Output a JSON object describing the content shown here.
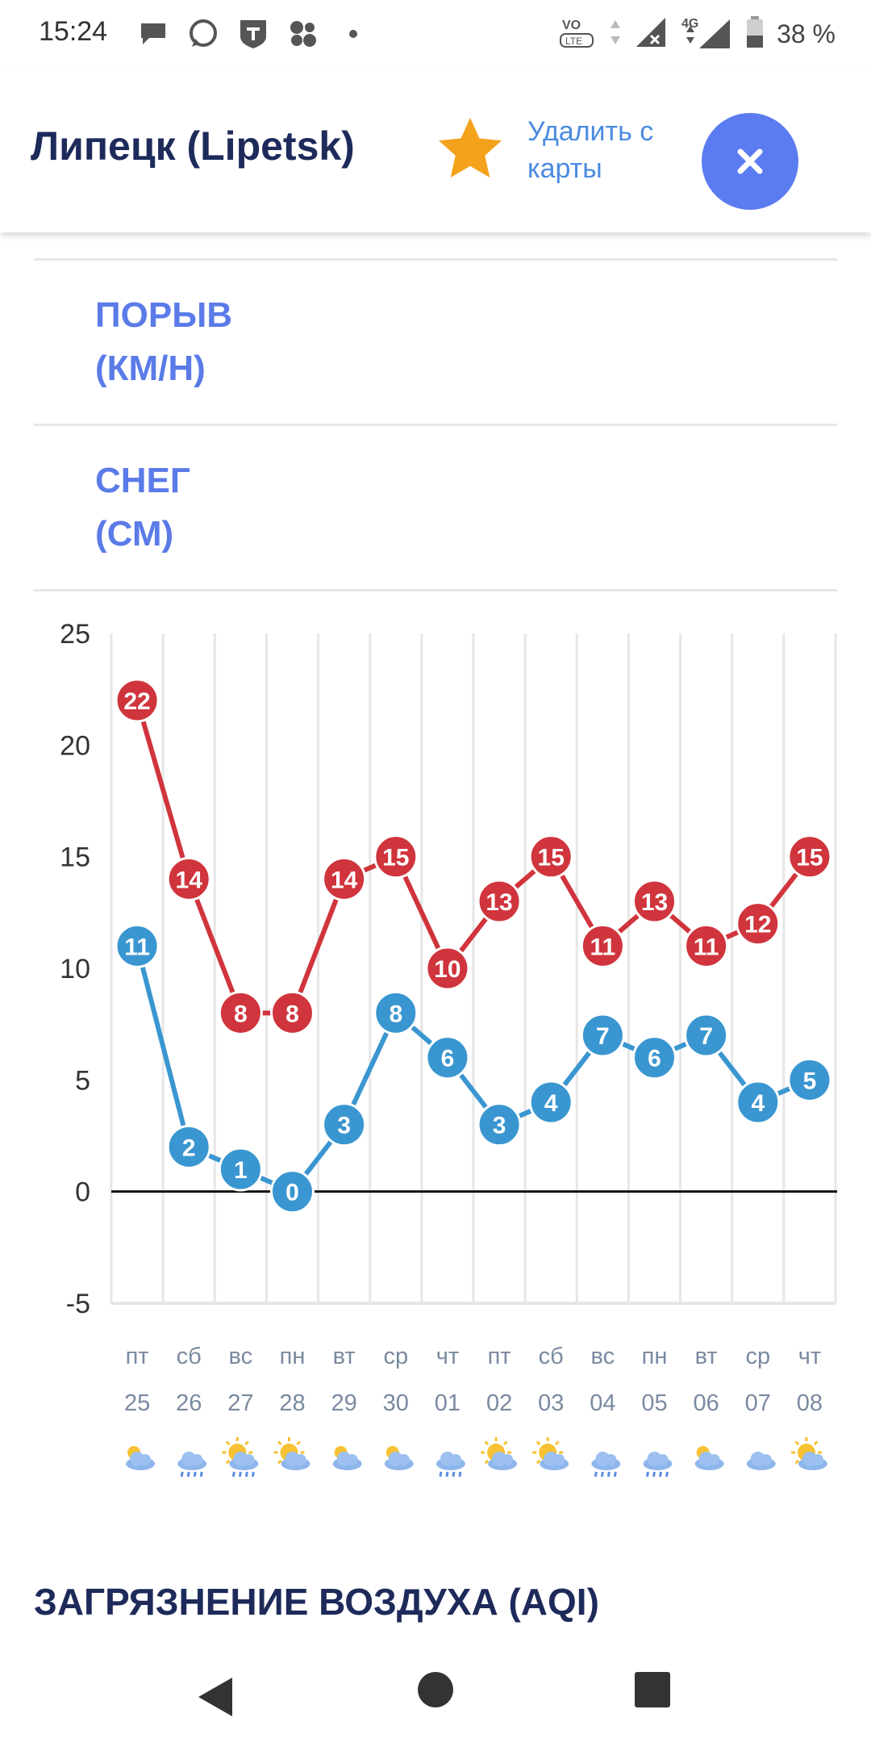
{
  "status_bar": {
    "time": "15:24",
    "battery": "38 %",
    "network": "4G"
  },
  "header": {
    "city": "Липецк (Lipetsk)",
    "remove_label_line1": "Удалить с",
    "remove_label_line2": "карты"
  },
  "rows": {
    "gust_line1": "ПОРЫВ",
    "gust_line2": "(КМ/Н)",
    "snow_line1": "СНЕГ",
    "snow_line2": "(СМ)"
  },
  "chart_data": {
    "type": "line",
    "title": "",
    "xlabel": "",
    "ylabel": "",
    "ylim": [
      -5,
      25
    ],
    "yticks": [
      25,
      20,
      15,
      10,
      5,
      0,
      -5
    ],
    "categories": [
      {
        "dow": "пт",
        "day": "25",
        "icon": "partly-cloudy-icon"
      },
      {
        "dow": "сб",
        "day": "26",
        "icon": "cloud-rain-icon"
      },
      {
        "dow": "вс",
        "day": "27",
        "icon": "sun-rain-icon"
      },
      {
        "dow": "пн",
        "day": "28",
        "icon": "sun-cloud-icon"
      },
      {
        "dow": "вт",
        "day": "29",
        "icon": "partly-cloudy-icon"
      },
      {
        "dow": "ср",
        "day": "30",
        "icon": "partly-cloudy-icon"
      },
      {
        "dow": "чт",
        "day": "01",
        "icon": "cloud-rain-icon"
      },
      {
        "dow": "пт",
        "day": "02",
        "icon": "sun-cloud-icon"
      },
      {
        "dow": "сб",
        "day": "03",
        "icon": "sun-cloud-icon"
      },
      {
        "dow": "вс",
        "day": "04",
        "icon": "cloud-rain-icon"
      },
      {
        "dow": "пн",
        "day": "05",
        "icon": "cloud-rain-icon"
      },
      {
        "dow": "вт",
        "day": "06",
        "icon": "partly-cloudy-icon"
      },
      {
        "dow": "ср",
        "day": "07",
        "icon": "cloud-icon"
      },
      {
        "dow": "чт",
        "day": "08",
        "icon": "sunny-cloud-icon"
      }
    ],
    "series": [
      {
        "color": "#d0343c",
        "values": [
          22,
          14,
          8,
          8,
          14,
          15,
          10,
          13,
          15,
          11,
          13,
          11,
          12,
          15
        ]
      },
      {
        "color": "#3a96d0",
        "values": [
          11,
          2,
          1,
          0,
          3,
          8,
          6,
          3,
          4,
          7,
          6,
          7,
          4,
          5
        ]
      }
    ],
    "grid": true,
    "zero_line": true
  },
  "section": {
    "air_title": "ЗАГРЯЗНЕНИЕ ВОЗДУХА (AQI)"
  },
  "colors": {
    "accent": "#5a7be8",
    "title": "#1d2a5a",
    "close_button": "#5b7bf0",
    "star": "#f4a21b"
  }
}
